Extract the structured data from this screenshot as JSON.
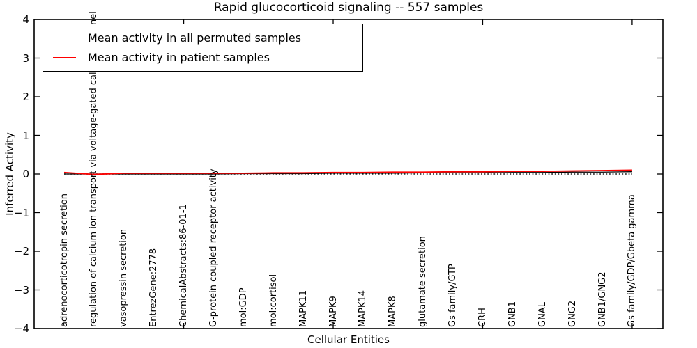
{
  "chart_data": {
    "type": "line",
    "title": "Rapid glucocorticoid signaling -- 557 samples",
    "xlabel": "Cellular Entities",
    "ylabel": "Inferred Activity",
    "ylim": [
      -4,
      4
    ],
    "yticks": [
      4,
      3,
      2,
      1,
      0,
      -1,
      -2,
      -3,
      -4
    ],
    "xtick_major_indices": [
      5,
      10,
      15,
      20
    ],
    "grid": false,
    "legend_position": "upper-left",
    "zero_reference_line": {
      "y": 0,
      "style": "dotted",
      "color": "#1a1a1a"
    },
    "categories": [
      "adrenocorticotropin secretion",
      "regulation of calcium ion transport via voltage-gated calcium channel",
      "vasopressin secretion",
      "EntrezGene:2778",
      "ChemicalAbstracts:86-01-1",
      "G-protein coupled receptor activity",
      "mol:GDP",
      "mol:cortisol",
      "MAPK11",
      "MAPK9",
      "MAPK14",
      "MAPK8",
      "glutamate secretion",
      "Gs family/GTP",
      "CRH",
      "GNB1",
      "GNAL",
      "GNG2",
      "GNB1/GNG2",
      "Gs family/GDP/Gbeta gamma"
    ],
    "series": [
      {
        "name": "Mean activity in all permuted samples",
        "color": "#000000",
        "style": "solid",
        "width": 1.3,
        "values": [
          0.0,
          0.0,
          0.0,
          0.0,
          0.0,
          0.0,
          0.01,
          0.01,
          0.01,
          0.02,
          0.02,
          0.02,
          0.03,
          0.03,
          0.03,
          0.04,
          0.04,
          0.05,
          0.05,
          0.06
        ]
      },
      {
        "name": "Mean activity in patient samples",
        "color": "#ff0000",
        "style": "solid",
        "width": 1.8,
        "values": [
          0.04,
          -0.01,
          0.02,
          0.02,
          0.02,
          0.02,
          0.02,
          0.03,
          0.03,
          0.04,
          0.04,
          0.05,
          0.05,
          0.06,
          0.06,
          0.07,
          0.07,
          0.08,
          0.09,
          0.1
        ]
      }
    ]
  },
  "axis_style": {
    "spine_color": "#000000",
    "tick_direction": "in"
  }
}
